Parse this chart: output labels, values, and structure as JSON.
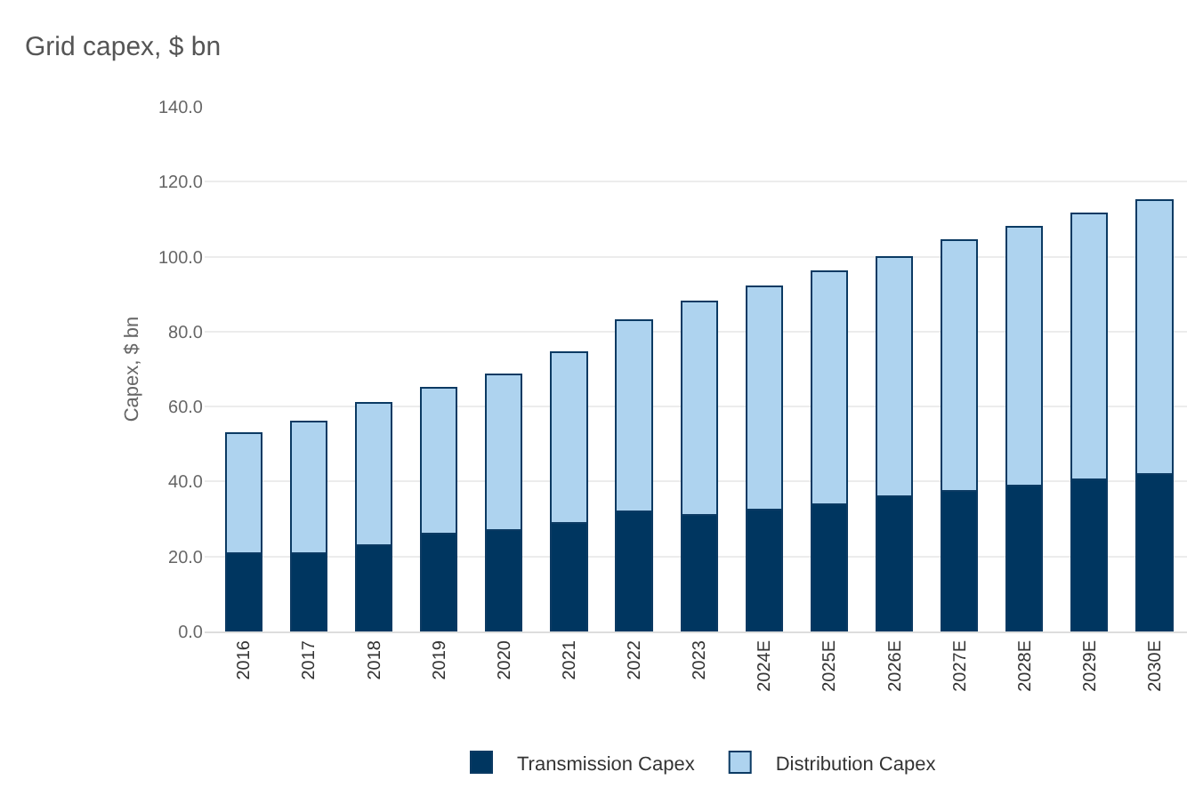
{
  "chart_data": {
    "type": "bar",
    "subtitle": "Grid capex, $ bn",
    "ylabel": "Capex, $ bn",
    "stacked": true,
    "categories": [
      "2016",
      "2017",
      "2018",
      "2019",
      "2020",
      "2021",
      "2022",
      "2023",
      "2024E",
      "2025E",
      "2026E",
      "2027E",
      "2028E",
      "2029E",
      "2030E"
    ],
    "series": [
      {
        "name": "Transmission Capex",
        "color": "#003660",
        "values": [
          21,
          21,
          23,
          26,
          27,
          29,
          32,
          31,
          32.5,
          34,
          36,
          37.5,
          39,
          40.5,
          42
        ]
      },
      {
        "name": "Distribution Capex",
        "color": "#aed3ef",
        "values": [
          32,
          35,
          38,
          39,
          41.5,
          45.5,
          51,
          57,
          59.5,
          62,
          64,
          67,
          69,
          71,
          73
        ]
      }
    ],
    "ylim": [
      0,
      140
    ],
    "yticks": [
      {
        "value": 0,
        "label": "0.0"
      },
      {
        "value": 20,
        "label": "20.0"
      },
      {
        "value": 40,
        "label": "40.0"
      },
      {
        "value": 60,
        "label": "60.0"
      },
      {
        "value": 80,
        "label": "80.0"
      },
      {
        "value": 100,
        "label": "100.0"
      },
      {
        "value": 120,
        "label": "120.0"
      },
      {
        "value": 140,
        "label": "140.0"
      }
    ],
    "grid": "y",
    "legend": "bottom"
  }
}
